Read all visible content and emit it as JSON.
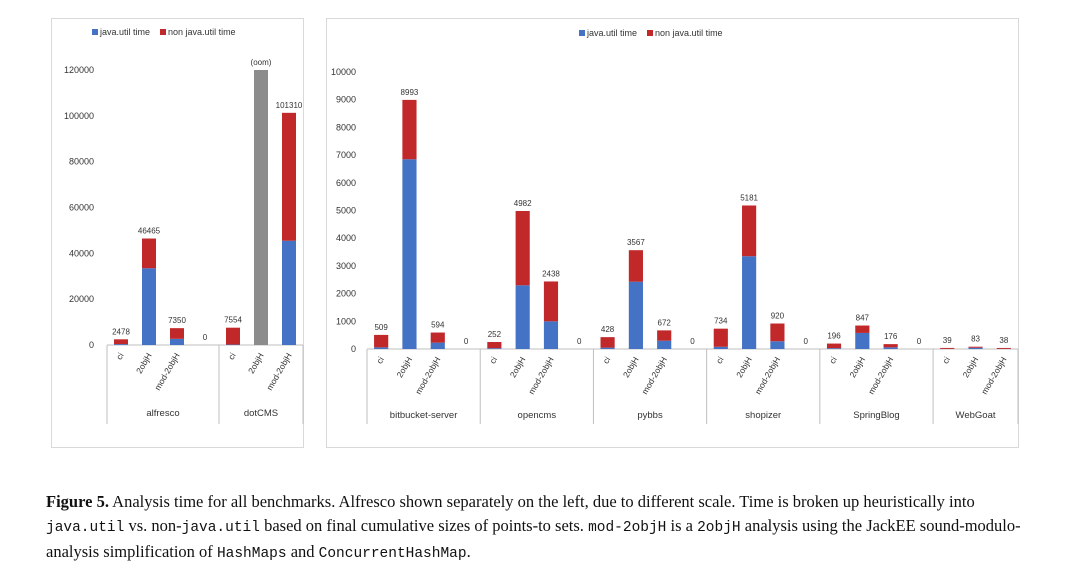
{
  "colors": {
    "java": "#4472c4",
    "nonjava": "#c0282a",
    "oom": "#8c8c8c",
    "axis": "#bfbfbf"
  },
  "legend": {
    "java_label": "java.util time",
    "nonjava_label": "non java.util time"
  },
  "chart_data": [
    {
      "type": "bar",
      "stacked": true,
      "ylim": [
        0,
        120000
      ],
      "yticks": [
        "0",
        "20000",
        "40000",
        "60000",
        "80000",
        "100000",
        "120000"
      ],
      "groups": [
        {
          "name": "alfresco",
          "bars": [
            {
              "label": "ci",
              "java": 400,
              "nonjava": 2078,
              "total_label": "2478"
            },
            {
              "label": "2objH",
              "java": 33500,
              "nonjava": 12965,
              "total_label": "46465"
            },
            {
              "label": "mod-2objH",
              "java": 2700,
              "nonjava": 4650,
              "total_label": "7350"
            },
            {
              "label": "",
              "java": 0,
              "nonjava": 0,
              "total_label": "0"
            }
          ]
        },
        {
          "name": "dotCMS",
          "bars": [
            {
              "label": "ci",
              "java": 200,
              "nonjava": 7354,
              "total_label": "7554"
            },
            {
              "label": "2objH",
              "oom": 120000,
              "total_label": "(oom)"
            },
            {
              "label": "mod-2objH",
              "java": 45500,
              "nonjava": 55810,
              "total_label": "101310"
            }
          ]
        }
      ],
      "legend": "top"
    },
    {
      "type": "bar",
      "stacked": true,
      "ylim": [
        0,
        10000
      ],
      "yticks": [
        "0",
        "1000",
        "2000",
        "3000",
        "4000",
        "5000",
        "6000",
        "7000",
        "8000",
        "9000",
        "10000"
      ],
      "groups": [
        {
          "name": "bitbucket-server",
          "bars": [
            {
              "label": "ci",
              "java": 60,
              "nonjava": 449,
              "total_label": "509"
            },
            {
              "label": "2objH",
              "java": 6850,
              "nonjava": 2143,
              "total_label": "8993"
            },
            {
              "label": "mod-2objH",
              "java": 230,
              "nonjava": 364,
              "total_label": "594"
            },
            {
              "label": "",
              "java": 0,
              "nonjava": 0,
              "total_label": "0"
            }
          ]
        },
        {
          "name": "opencms",
          "bars": [
            {
              "label": "ci",
              "java": 30,
              "nonjava": 222,
              "total_label": "252"
            },
            {
              "label": "2objH",
              "java": 2300,
              "nonjava": 2682,
              "total_label": "4982"
            },
            {
              "label": "mod-2objH",
              "java": 1000,
              "nonjava": 1438,
              "total_label": "2438"
            },
            {
              "label": "",
              "java": 0,
              "nonjava": 0,
              "total_label": "0"
            }
          ]
        },
        {
          "name": "pybbs",
          "bars": [
            {
              "label": "ci",
              "java": 50,
              "nonjava": 378,
              "total_label": "428"
            },
            {
              "label": "2objH",
              "java": 2430,
              "nonjava": 1137,
              "total_label": "3567"
            },
            {
              "label": "mod-2objH",
              "java": 300,
              "nonjava": 372,
              "total_label": "672"
            },
            {
              "label": "",
              "java": 0,
              "nonjava": 0,
              "total_label": "0"
            }
          ]
        },
        {
          "name": "shopizer",
          "bars": [
            {
              "label": "ci",
              "java": 80,
              "nonjava": 654,
              "total_label": "734"
            },
            {
              "label": "2objH",
              "java": 3350,
              "nonjava": 1831,
              "total_label": "5181"
            },
            {
              "label": "mod-2objH",
              "java": 280,
              "nonjava": 640,
              "total_label": "920"
            },
            {
              "label": "",
              "java": 0,
              "nonjava": 0,
              "total_label": "0"
            }
          ]
        },
        {
          "name": "SpringBlog",
          "bars": [
            {
              "label": "ci",
              "java": 30,
              "nonjava": 166,
              "total_label": "196"
            },
            {
              "label": "2objH",
              "java": 580,
              "nonjava": 267,
              "total_label": "847"
            },
            {
              "label": "mod-2objH",
              "java": 60,
              "nonjava": 116,
              "total_label": "176"
            },
            {
              "label": "",
              "java": 0,
              "nonjava": 0,
              "total_label": "0"
            }
          ]
        },
        {
          "name": "WebGoat",
          "bars": [
            {
              "label": "ci",
              "java": 5,
              "nonjava": 34,
              "total_label": "39"
            },
            {
              "label": "2objH",
              "java": 45,
              "nonjava": 38,
              "total_label": "83"
            },
            {
              "label": "mod-2objH",
              "java": 5,
              "nonjava": 33,
              "total_label": "38"
            }
          ]
        }
      ],
      "legend": "top"
    }
  ],
  "caption": {
    "label": "Figure 5.",
    "p1": " Analysis time for all benchmarks. Alfresco shown separately on the left, due to different scale. Time is broken up heuristically into ",
    "m1": "java.util",
    "p2": " vs. non-",
    "m2": "java.util",
    "p3": " based on final cumulative sizes of points-to sets. ",
    "m3": "mod-2objH",
    "p4": " is a ",
    "m4": "2objH",
    "p5": " analysis using the JackEE sound-modulo-analysis simplification of ",
    "m5": "HashMaps",
    "p6": " and ",
    "m6": "ConcurrentHashMap",
    "p7": "."
  }
}
